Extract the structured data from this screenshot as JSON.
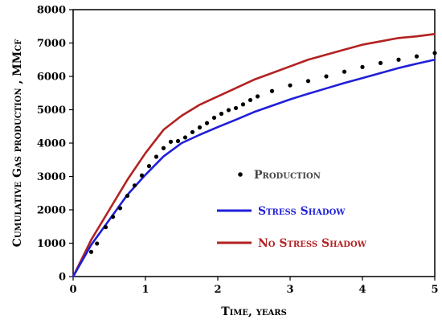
{
  "chart_data": {
    "type": "line",
    "xlabel": "Time, years",
    "ylabel": "Cumulative Gas production , MMcf",
    "xlim": [
      0,
      5
    ],
    "ylim": [
      0,
      8000
    ],
    "xticks": [
      "0",
      "1",
      "2",
      "3",
      "4",
      "5"
    ],
    "yticks": [
      "0",
      "1000",
      "2000",
      "3000",
      "4000",
      "5000",
      "6000",
      "7000",
      "8000"
    ],
    "grid": false,
    "legend_position": "center-right",
    "series": [
      {
        "name": "Production",
        "style": "points",
        "color": "#000000",
        "x": [
          0.25,
          0.33,
          0.45,
          0.55,
          0.65,
          0.75,
          0.85,
          0.95,
          1.05,
          1.15,
          1.25,
          1.35,
          1.45,
          1.55,
          1.65,
          1.75,
          1.85,
          1.95,
          2.05,
          2.15,
          2.25,
          2.35,
          2.45,
          2.55,
          2.75,
          3.0,
          3.25,
          3.5,
          3.75,
          4.0,
          4.25,
          4.5,
          4.75,
          5.0
        ],
        "y": [
          740,
          990,
          1480,
          1790,
          2050,
          2420,
          2730,
          3030,
          3310,
          3590,
          3850,
          4040,
          4060,
          4170,
          4330,
          4470,
          4600,
          4760,
          4880,
          4990,
          5050,
          5160,
          5290,
          5400,
          5560,
          5730,
          5860,
          6000,
          6140,
          6280,
          6400,
          6500,
          6600,
          6700
        ]
      },
      {
        "name": "Stress Shadow",
        "style": "line",
        "color": "#1f1fd8",
        "x": [
          0,
          0.25,
          0.5,
          0.75,
          1.0,
          1.25,
          1.5,
          1.75,
          2.0,
          2.25,
          2.5,
          2.75,
          3.0,
          3.25,
          3.5,
          3.75,
          4.0,
          4.25,
          4.5,
          4.75,
          5.0
        ],
        "y": [
          0,
          950,
          1700,
          2450,
          3050,
          3600,
          4000,
          4250,
          4480,
          4700,
          4930,
          5120,
          5310,
          5480,
          5640,
          5800,
          5950,
          6100,
          6250,
          6380,
          6500
        ]
      },
      {
        "name": "No Stress Shadow",
        "style": "line",
        "color": "#b22222",
        "x": [
          0,
          0.25,
          0.5,
          0.75,
          1.0,
          1.25,
          1.5,
          1.75,
          2.0,
          2.25,
          2.5,
          2.75,
          3.0,
          3.25,
          3.5,
          3.75,
          4.0,
          4.25,
          4.5,
          4.75,
          5.0
        ],
        "y": [
          0,
          1100,
          2000,
          2900,
          3700,
          4400,
          4820,
          5150,
          5400,
          5650,
          5900,
          6100,
          6300,
          6500,
          6650,
          6800,
          6950,
          7050,
          7150,
          7200,
          7270
        ]
      }
    ]
  }
}
